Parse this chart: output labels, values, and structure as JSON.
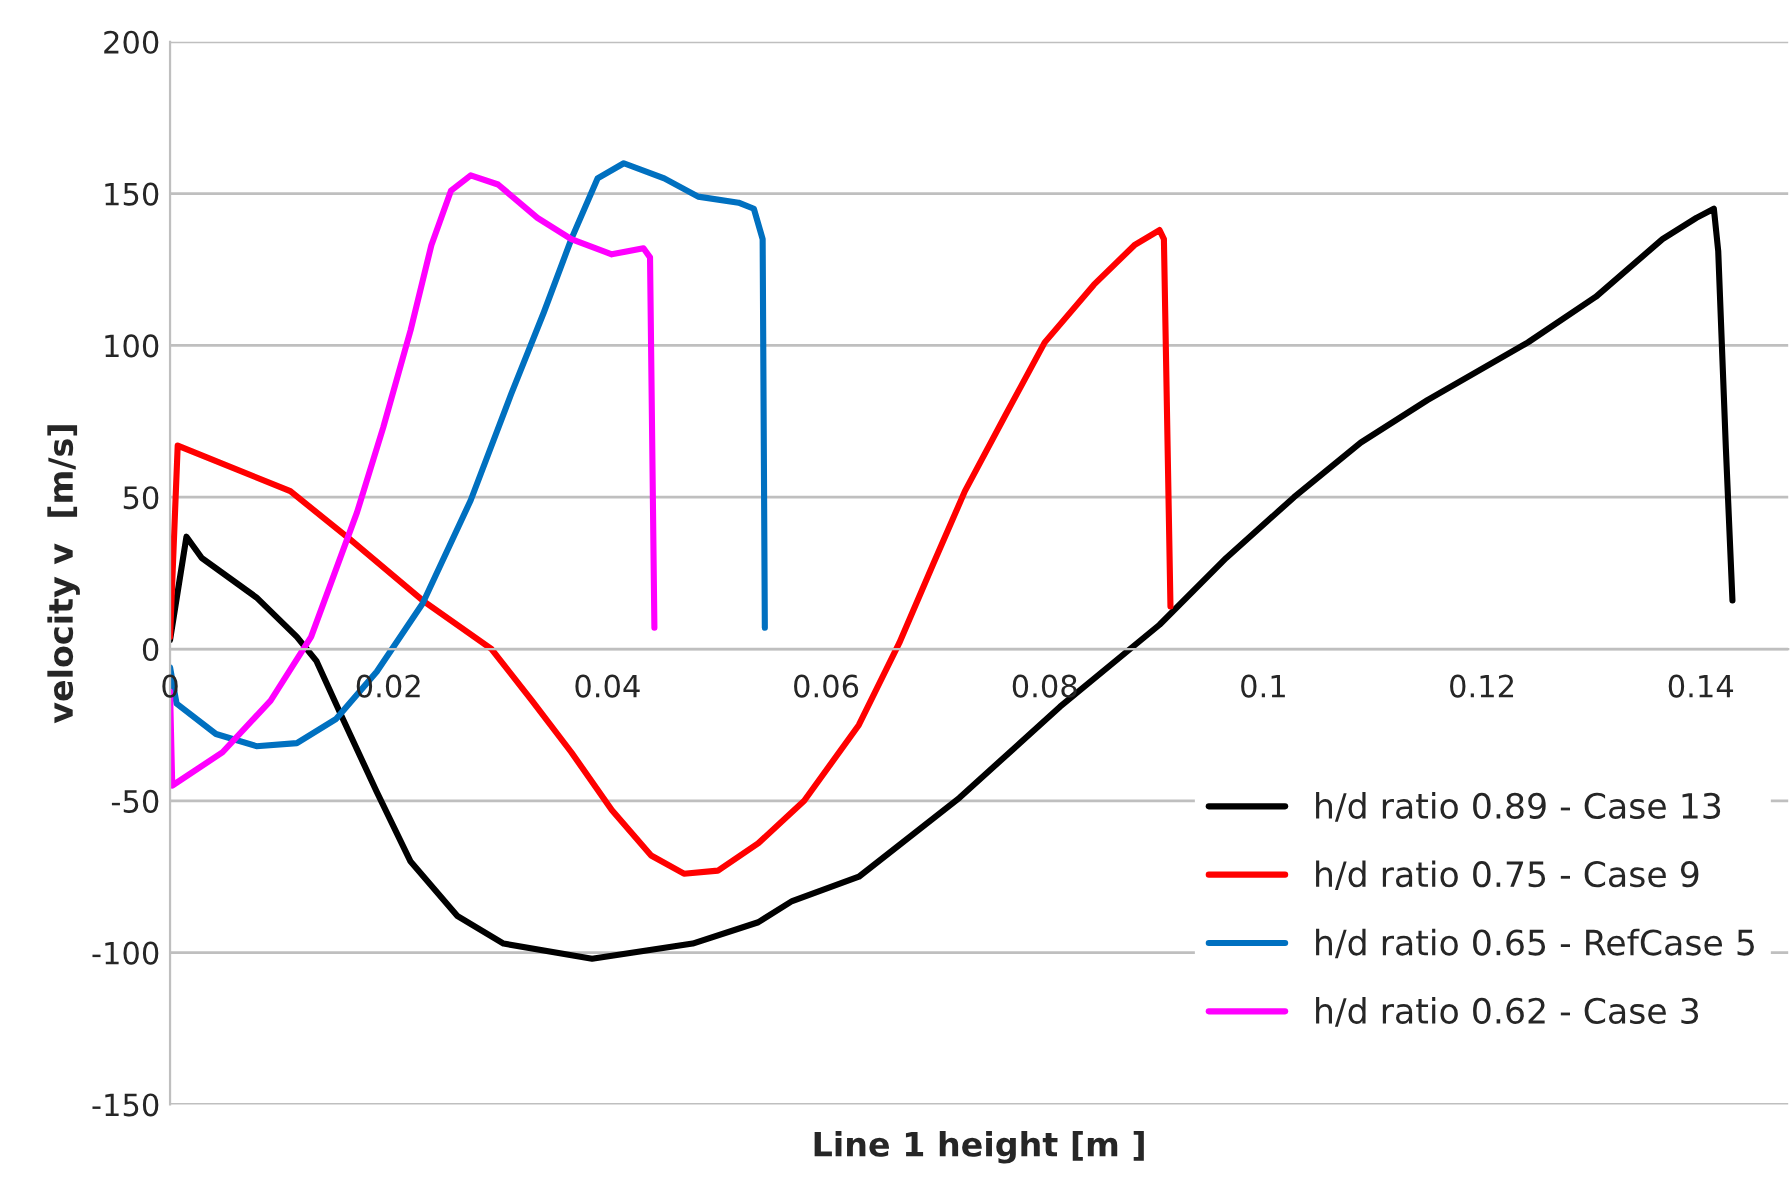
{
  "chart_data": {
    "type": "line",
    "xlabel": "Line 1 height [m ]",
    "ylabel": "velocity v  [m/s]",
    "xlim": [
      0,
      0.148
    ],
    "xticks": [
      0,
      0.02,
      0.04,
      0.06,
      0.08,
      0.1,
      0.12,
      0.14
    ],
    "ylim": [
      -150,
      200
    ],
    "yticks": [
      -150,
      -100,
      -50,
      0,
      50,
      100,
      150,
      200
    ],
    "grid": "y",
    "legend": "bottom right",
    "marker": "none",
    "line_style": "solid",
    "series": [
      {
        "name": "h/d ratio 0.89 - Case 13",
        "color": "#000000",
        "x": [
          0,
          0.0015,
          0.0029,
          0.0079,
          0.0116,
          0.0134,
          0.0158,
          0.0189,
          0.022,
          0.0263,
          0.0305,
          0.0386,
          0.0478,
          0.0538,
          0.0569,
          0.063,
          0.0722,
          0.0814,
          0.0905,
          0.0966,
          0.1028,
          0.1089,
          0.115,
          0.1242,
          0.1304,
          0.1365,
          0.1396,
          0.1412,
          0.1416,
          0.1423,
          0.1429
        ],
        "values": [
          3,
          37,
          30,
          17,
          4,
          -4,
          -23,
          -47,
          -70,
          -88,
          -97,
          -102,
          -97,
          -90,
          -83,
          -75,
          -49,
          -19,
          8,
          30,
          50,
          68,
          82,
          101,
          116,
          135,
          142,
          145,
          131,
          66,
          16
        ]
      },
      {
        "name": "h/d ratio 0.75 - Case 9",
        "color": "#ff0000",
        "x": [
          0,
          0.0007,
          0.011,
          0.0165,
          0.0231,
          0.0294,
          0.0331,
          0.0367,
          0.0404,
          0.044,
          0.047,
          0.0501,
          0.0538,
          0.058,
          0.063,
          0.0667,
          0.0698,
          0.0727,
          0.0764,
          0.08,
          0.0845,
          0.0882,
          0.0905,
          0.0909,
          0.0915
        ],
        "values": [
          4,
          67,
          52,
          36,
          16,
          0,
          -17,
          -34,
          -53,
          -68,
          -74,
          -73,
          -64,
          -50,
          -25,
          2,
          28,
          52,
          77,
          101,
          120,
          133,
          138,
          135,
          14
        ]
      },
      {
        "name": "h/d ratio 0.65 - RefCase 5",
        "color": "#0070c0",
        "x": [
          0,
          0.0006,
          0.0042,
          0.0079,
          0.0116,
          0.0152,
          0.0189,
          0.0231,
          0.0275,
          0.0312,
          0.0342,
          0.0367,
          0.0391,
          0.0415,
          0.0452,
          0.0483,
          0.052,
          0.0534,
          0.0542,
          0.0544
        ],
        "values": [
          -6,
          -18,
          -28,
          -32,
          -31,
          -23,
          -7.5,
          15,
          49,
          84,
          111,
          135,
          155,
          160,
          155,
          149,
          147,
          145,
          135,
          7
        ]
      },
      {
        "name": "h/d ratio 0.62 - Case 3",
        "color": "#ff00ff",
        "x": [
          0,
          0.0002,
          0.0048,
          0.0092,
          0.0129,
          0.0171,
          0.0195,
          0.022,
          0.0239,
          0.0257,
          0.0275,
          0.03,
          0.0336,
          0.0367,
          0.0404,
          0.0433,
          0.0439,
          0.0443
        ],
        "values": [
          -14,
          -45,
          -34,
          -17,
          4,
          45,
          73,
          105,
          133,
          151,
          156,
          153,
          142,
          135,
          130,
          132,
          129,
          7
        ]
      }
    ]
  }
}
